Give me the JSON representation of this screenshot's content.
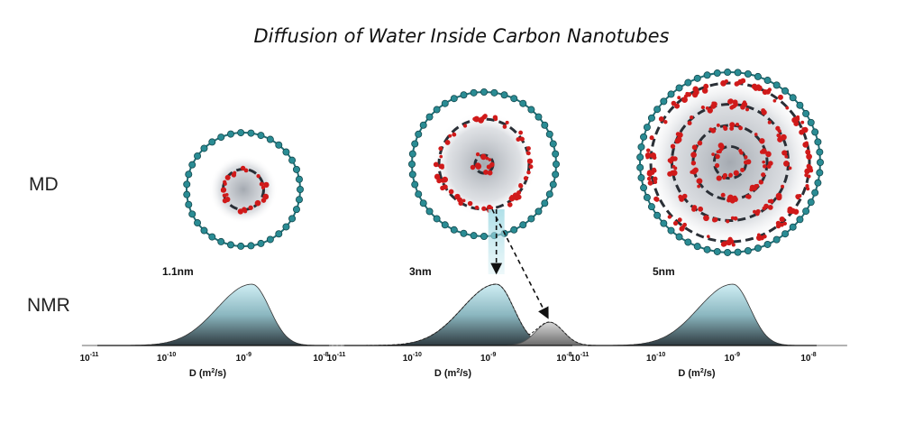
{
  "title": "Diffusion of Water Inside Carbon Nanotubes",
  "row_labels": {
    "md": "MD",
    "nmr": "NMR"
  },
  "panels": [
    {
      "size": "1.1nm",
      "layers": 1,
      "tube_scale": 1.0
    },
    {
      "size": "3nm",
      "layers": 2,
      "tube_scale": 1.3
    },
    {
      "size": "5nm",
      "layers": 4,
      "tube_scale": 1.55
    }
  ],
  "axis": {
    "title": "D (m",
    "title_sup": "2",
    "title_end": "/s)",
    "ticks": [
      {
        "base": "10",
        "exp": "-11",
        "log": -11
      },
      {
        "base": "10",
        "exp": "-10",
        "log": -10
      },
      {
        "base": "10",
        "exp": "-9",
        "log": -9
      },
      {
        "base": "10",
        "exp": "-8",
        "log": -8
      }
    ]
  },
  "colors": {
    "tube": "#2a8c94",
    "water_red": "#d01a1a",
    "peak_top": "#bfe3ea",
    "peak_bottom": "#3a4a50",
    "peak2": "#8a8a8a"
  },
  "chart_data": [
    {
      "type": "area",
      "xscale": "log",
      "xlim": [
        1e-11,
        1e-08
      ],
      "xlabel": "D (m2/s)",
      "series": [
        {
          "peak_log10D": -9.0,
          "height": 1.0
        }
      ]
    },
    {
      "type": "area",
      "xscale": "log",
      "xlim": [
        1e-11,
        1e-08
      ],
      "xlabel": "D (m2/s)",
      "series": [
        {
          "peak_log10D": -9.0,
          "height": 1.0
        },
        {
          "peak_log10D": -8.3,
          "height": 0.38
        }
      ]
    },
    {
      "type": "area",
      "xscale": "log",
      "xlim": [
        1e-11,
        1e-08
      ],
      "xlabel": "D (m2/s)",
      "series": [
        {
          "peak_log10D": -9.1,
          "height": 1.0
        }
      ]
    }
  ]
}
